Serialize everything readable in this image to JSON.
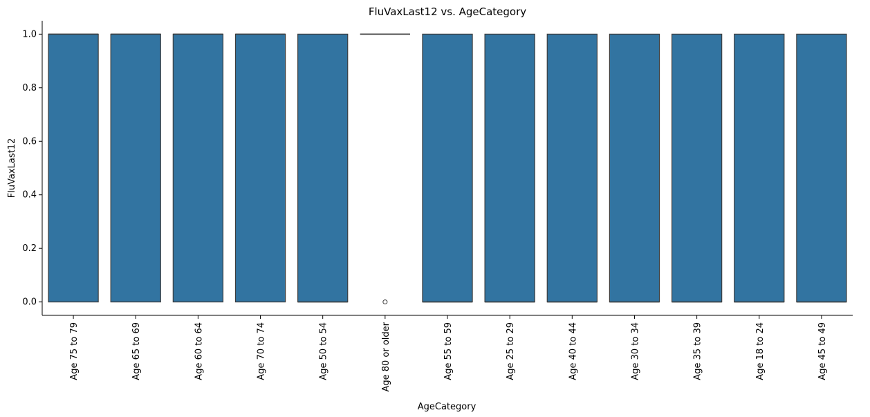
{
  "chart_data": {
    "type": "boxplot",
    "title": "FluVaxLast12 vs. AgeCategory",
    "xlabel": "AgeCategory",
    "ylabel": "FluVaxLast12",
    "ylim": [
      -0.05,
      1.05
    ],
    "yticks": [
      0.0,
      0.2,
      0.4,
      0.6,
      0.8,
      1.0
    ],
    "ytick_labels": [
      "0.0",
      "0.2",
      "0.4",
      "0.6",
      "0.8",
      "1.0"
    ],
    "box_color": "#3274a1",
    "edge_color": "#3d3d3d",
    "grid": false,
    "categories": [
      "Age 75 to 79",
      "Age 65 to 69",
      "Age 60 to 64",
      "Age 70 to 74",
      "Age 50 to 54",
      "Age 80 or older",
      "Age 55 to 59",
      "Age 25 to 29",
      "Age 40 to 44",
      "Age 30 to 34",
      "Age 35 to 39",
      "Age 18 to 24",
      "Age 45 to 49"
    ],
    "boxes": [
      {
        "min": 0,
        "q1": 0,
        "median": 1,
        "q3": 1,
        "max": 1,
        "outliers": []
      },
      {
        "min": 0,
        "q1": 0,
        "median": 1,
        "q3": 1,
        "max": 1,
        "outliers": []
      },
      {
        "min": 0,
        "q1": 0,
        "median": 1,
        "q3": 1,
        "max": 1,
        "outliers": []
      },
      {
        "min": 0,
        "q1": 0,
        "median": 1,
        "q3": 1,
        "max": 1,
        "outliers": []
      },
      {
        "min": 0,
        "q1": 0,
        "median": 0,
        "q3": 1,
        "max": 1,
        "outliers": []
      },
      {
        "min": 1,
        "q1": 1,
        "median": 1,
        "q3": 1,
        "max": 1,
        "outliers": [
          0
        ]
      },
      {
        "min": 0,
        "q1": 0,
        "median": 0,
        "q3": 1,
        "max": 1,
        "outliers": []
      },
      {
        "min": 0,
        "q1": 0,
        "median": 0,
        "q3": 1,
        "max": 1,
        "outliers": []
      },
      {
        "min": 0,
        "q1": 0,
        "median": 0,
        "q3": 1,
        "max": 1,
        "outliers": []
      },
      {
        "min": 0,
        "q1": 0,
        "median": 0,
        "q3": 1,
        "max": 1,
        "outliers": []
      },
      {
        "min": 0,
        "q1": 0,
        "median": 0,
        "q3": 1,
        "max": 1,
        "outliers": []
      },
      {
        "min": 0,
        "q1": 0,
        "median": 0,
        "q3": 1,
        "max": 1,
        "outliers": []
      },
      {
        "min": 0,
        "q1": 0,
        "median": 0,
        "q3": 1,
        "max": 1,
        "outliers": []
      }
    ]
  }
}
